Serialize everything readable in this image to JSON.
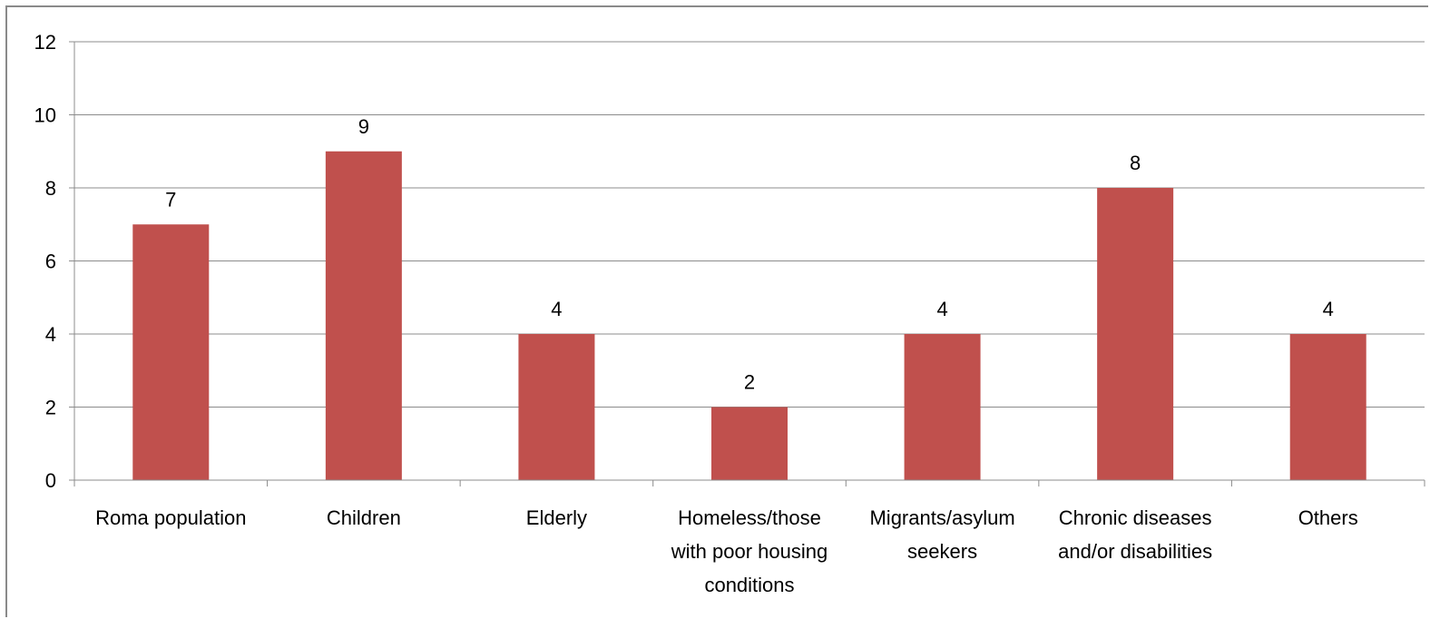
{
  "chart_data": {
    "type": "bar",
    "categories": [
      [
        "Roma population"
      ],
      [
        "Children"
      ],
      [
        "Elderly"
      ],
      [
        "Homeless/those",
        "with poor housing",
        "conditions"
      ],
      [
        "Migrants/asylum",
        "seekers"
      ],
      [
        "Chronic diseases",
        "and/or disabilities"
      ],
      [
        "Others"
      ]
    ],
    "values": [
      7,
      9,
      4,
      2,
      4,
      8,
      4
    ],
    "data_labels": [
      "7",
      "9",
      "4",
      "2",
      "4",
      "8",
      "4"
    ],
    "y_ticks": [
      "0",
      "2",
      "4",
      "6",
      "8",
      "10",
      "12"
    ],
    "ylim": [
      0,
      12
    ],
    "grid": true,
    "legend": "none",
    "bar_color": "#c0504d",
    "grid_color": "#8c8c8c",
    "axis_color": "#8c8c8c",
    "title": "",
    "xlabel": "",
    "ylabel": ""
  }
}
